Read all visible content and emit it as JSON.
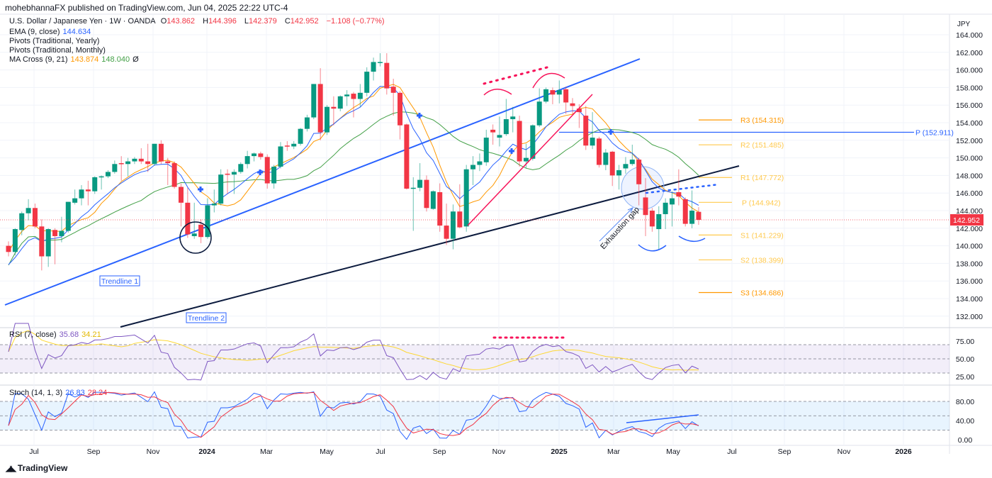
{
  "header": {
    "published": "mohebhannaFX published on TradingView.com, Jun 04, 2025 22:22 UTC-4",
    "currency": "JPY"
  },
  "legend": {
    "symbol": "U.S. Dollar / Japanese Yen · 1W · OANDA",
    "o_label": "O",
    "o": "143.862",
    "h_label": "H",
    "h": "144.396",
    "l_label": "L",
    "l": "142.379",
    "c_label": "C",
    "c": "142.952",
    "change": "−1.108 (−0.77%)",
    "ema": "EMA (9, close)",
    "ema_value": "144.634",
    "pivots_yearly": "Pivots (Traditional, Yearly)",
    "pivots_monthly": "Pivots (Traditional, Monthly)",
    "ma_cross": "MA Cross (9, 21)",
    "ma_fast": "143.874",
    "ma_slow": "148.040",
    "ma_icon": "Ø",
    "rsi": "RSI (7, close)",
    "rsi_value": "35.68",
    "rsi_signal": "34.21",
    "stoch": "Stoch (14, 1, 3)",
    "stoch_k": "26.83",
    "stoch_d": "28.24"
  },
  "colors": {
    "up": "#089981",
    "down": "#f23645",
    "ema": "#2962ff",
    "ma_fast": "#ff9800",
    "ma_slow": "#43a047",
    "rsi": "#7e57c2",
    "rsi_signal": "#fdd835",
    "stoch_k": "#2962ff",
    "stoch_d": "#f23645",
    "pivot_yearly": "#2962ff",
    "pivot_monthly": "#ff9800",
    "trendline1": "#2962ff",
    "trendline2": "#0c1b3e",
    "annotation_pink": "#f7145a"
  },
  "pivots": {
    "yearly": [
      {
        "label": "P (152.911)",
        "value": 152.911
      }
    ],
    "monthly": [
      {
        "label": "R3 (154.315)",
        "value": 154.315
      },
      {
        "label": "R2 (151.485)",
        "value": 151.485
      },
      {
        "label": "R1 (147.772)",
        "value": 147.772
      },
      {
        "label": "P (144.942)",
        "value": 144.942
      },
      {
        "label": "S1 (141.229)",
        "value": 141.229
      },
      {
        "label": "S2 (138.399)",
        "value": 138.399
      },
      {
        "label": "S3 (134.686)",
        "value": 134.686
      }
    ]
  },
  "annotations": {
    "trendline1": "Trendline 1",
    "trendline2": "Trendline 2",
    "exhaustion_gap": "Exhaustion gap"
  },
  "price_tag": "142.952",
  "rsi_axis": [
    "75.00",
    "50.00",
    "25.00"
  ],
  "stoch_axis": [
    "80.00",
    "40.00",
    "0.00"
  ],
  "footer": {
    "brand": "TradingView"
  },
  "chart_data": {
    "type": "candlestick",
    "title": "U.S. Dollar / Japanese Yen · 1W · OANDA",
    "ylim": [
      131,
      165
    ],
    "yticks": [
      164,
      162,
      160,
      158,
      156,
      154,
      152,
      150,
      148,
      146,
      144,
      142,
      140,
      138,
      136,
      134,
      132
    ],
    "ytick_labels": [
      "164.000",
      "162.000",
      "160.000",
      "158.000",
      "156.000",
      "154.000",
      "152.000",
      "150.000",
      "148.000",
      "146.000",
      "144.000",
      "142.000",
      "140.000",
      "138.000",
      "136.000",
      "134.000",
      "132.000"
    ],
    "xticks": [
      "Jul",
      "Sep",
      "Nov",
      "2024",
      "Mar",
      "May",
      "Jul",
      "Sep",
      "Nov",
      "2025",
      "Mar",
      "May",
      "Jul",
      "Sep",
      "Nov",
      "2026"
    ],
    "grid": true,
    "candles_ohlc": [
      [
        140.0,
        140.5,
        138.8,
        139.3
      ],
      [
        139.3,
        142.0,
        138.9,
        141.9
      ],
      [
        141.8,
        143.9,
        141.2,
        143.7
      ],
      [
        143.7,
        145.3,
        142.9,
        144.3
      ],
      [
        144.3,
        144.8,
        142.0,
        142.2
      ],
      [
        142.2,
        143.0,
        137.2,
        138.8
      ],
      [
        138.8,
        142.0,
        137.6,
        141.9
      ],
      [
        141.8,
        142.0,
        137.9,
        141.1
      ],
      [
        141.1,
        143.3,
        140.4,
        141.7
      ],
      [
        141.7,
        145.0,
        141.5,
        145.0
      ],
      [
        144.9,
        146.4,
        144.7,
        145.4
      ],
      [
        145.4,
        146.9,
        144.6,
        146.4
      ],
      [
        146.4,
        147.4,
        144.6,
        146.2
      ],
      [
        146.2,
        147.9,
        145.9,
        147.8
      ],
      [
        147.8,
        148.0,
        146.4,
        147.9
      ],
      [
        147.9,
        148.6,
        147.7,
        148.4
      ],
      [
        148.4,
        149.7,
        148.2,
        149.3
      ],
      [
        149.4,
        150.2,
        147.4,
        149.3
      ],
      [
        149.3,
        150.0,
        147.9,
        149.6
      ],
      [
        149.6,
        150.1,
        149.3,
        149.9
      ],
      [
        149.9,
        151.1,
        149.3,
        149.6
      ],
      [
        149.6,
        151.6,
        148.4,
        149.3
      ],
      [
        149.3,
        151.6,
        149.1,
        151.6
      ],
      [
        151.6,
        152.0,
        149.3,
        149.6
      ],
      [
        149.6,
        150.0,
        146.9,
        149.4
      ],
      [
        149.4,
        149.6,
        146.5,
        146.7
      ],
      [
        146.7,
        147.1,
        142.2,
        144.9
      ],
      [
        144.9,
        146.6,
        140.9,
        141.3
      ],
      [
        141.1,
        144.9,
        140.8,
        141.4
      ],
      [
        142.4,
        143.0,
        140.3,
        141.0
      ],
      [
        141.0,
        145.4,
        140.8,
        144.6
      ],
      [
        144.6,
        146.4,
        143.8,
        144.8
      ],
      [
        144.8,
        148.7,
        144.6,
        148.1
      ],
      [
        148.2,
        148.7,
        145.9,
        148.1
      ],
      [
        148.1,
        148.7,
        145.9,
        148.4
      ],
      [
        148.4,
        149.5,
        148.2,
        149.3
      ],
      [
        149.3,
        150.8,
        148.8,
        150.2
      ],
      [
        150.2,
        150.6,
        149.6,
        150.5
      ],
      [
        150.5,
        150.7,
        149.8,
        150.1
      ],
      [
        150.1,
        150.4,
        146.5,
        147.1
      ],
      [
        147.1,
        149.2,
        146.5,
        149.0
      ],
      [
        149.0,
        151.8,
        148.8,
        151.3
      ],
      [
        151.4,
        151.9,
        150.8,
        151.3
      ],
      [
        151.3,
        151.9,
        151.0,
        151.6
      ],
      [
        151.6,
        153.4,
        151.4,
        153.3
      ],
      [
        153.3,
        154.9,
        153.0,
        154.6
      ],
      [
        154.6,
        158.4,
        154.4,
        158.4
      ],
      [
        158.4,
        160.2,
        152.0,
        152.9
      ],
      [
        152.9,
        156.0,
        152.6,
        155.8
      ],
      [
        155.8,
        157.0,
        153.7,
        155.6
      ],
      [
        155.6,
        157.1,
        155.3,
        157.0
      ],
      [
        157.0,
        157.7,
        155.9,
        157.2
      ],
      [
        157.3,
        157.5,
        154.6,
        156.7
      ],
      [
        156.7,
        158.4,
        155.8,
        157.4
      ],
      [
        157.4,
        160.3,
        157.0,
        159.8
      ],
      [
        159.8,
        161.4,
        158.8,
        160.9
      ],
      [
        160.8,
        161.9,
        160.4,
        160.9
      ],
      [
        160.8,
        161.9,
        157.2,
        157.9
      ],
      [
        158.1,
        159.0,
        154.8,
        157.4
      ],
      [
        157.4,
        157.6,
        152.1,
        153.7
      ],
      [
        153.8,
        153.9,
        146.4,
        146.5
      ],
      [
        146.5,
        147.8,
        141.7,
        146.6
      ],
      [
        146.6,
        149.4,
        146.2,
        147.5
      ],
      [
        147.5,
        148.0,
        143.9,
        144.3
      ],
      [
        144.2,
        146.3,
        144.1,
        146.2
      ],
      [
        146.1,
        147.1,
        141.6,
        142.3
      ],
      [
        142.3,
        144.8,
        140.1,
        140.8
      ],
      [
        140.8,
        144.7,
        139.6,
        143.9
      ],
      [
        143.9,
        147.0,
        142.0,
        142.1
      ],
      [
        142.2,
        149.2,
        141.6,
        148.7
      ],
      [
        148.7,
        150.2,
        146.9,
        149.2
      ],
      [
        149.2,
        150.5,
        148.5,
        149.6
      ],
      [
        149.5,
        153.2,
        149.1,
        152.3
      ],
      [
        153.2,
        153.8,
        151.5,
        152.9
      ],
      [
        152.3,
        154.7,
        151.3,
        152.6
      ],
      [
        152.7,
        156.7,
        152.5,
        154.4
      ],
      [
        154.4,
        155.8,
        152.9,
        154.7
      ],
      [
        154.2,
        154.8,
        149.0,
        149.6
      ],
      [
        149.6,
        151.6,
        148.8,
        150.0
      ],
      [
        149.9,
        153.8,
        149.7,
        153.7
      ],
      [
        153.7,
        157.9,
        153.5,
        156.4
      ],
      [
        156.4,
        158.0,
        156.2,
        157.8
      ],
      [
        157.7,
        158.0,
        156.1,
        157.2
      ],
      [
        157.2,
        158.8,
        156.2,
        157.7
      ],
      [
        157.8,
        158.1,
        155.0,
        156.3
      ],
      [
        156.2,
        156.8,
        155.0,
        155.9
      ],
      [
        155.6,
        156.1,
        153.4,
        155.2
      ],
      [
        154.8,
        155.9,
        150.9,
        151.4
      ],
      [
        151.4,
        155.2,
        151.0,
        152.3
      ],
      [
        152.2,
        152.4,
        148.9,
        149.2
      ],
      [
        149.2,
        151.0,
        148.6,
        150.6
      ],
      [
        150.7,
        150.8,
        146.8,
        148.0
      ],
      [
        148.0,
        149.2,
        146.4,
        148.6
      ],
      [
        148.8,
        150.1,
        148.2,
        149.3
      ],
      [
        149.3,
        151.5,
        149.1,
        149.8
      ],
      [
        149.8,
        150.0,
        144.6,
        147.0
      ],
      [
        145.5,
        147.7,
        141.1,
        143.5
      ],
      [
        144.0,
        144.3,
        141.6,
        142.2
      ],
      [
        141.9,
        144.5,
        139.5,
        143.6
      ],
      [
        143.6,
        145.4,
        141.9,
        144.9
      ],
      [
        144.7,
        146.2,
        142.2,
        145.4
      ],
      [
        146.1,
        148.7,
        144.6,
        145.6
      ],
      [
        145.3,
        145.5,
        142.2,
        142.5
      ],
      [
        142.5,
        146.3,
        142.0,
        144.0
      ],
      [
        143.862,
        144.396,
        142.379,
        142.952
      ]
    ]
  }
}
